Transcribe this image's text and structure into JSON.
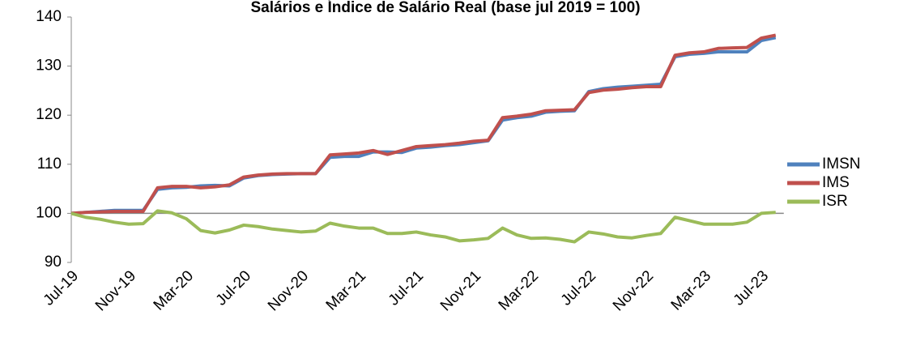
{
  "chart_data": {
    "type": "line",
    "title": "Salários e Índice de Salário Real (base jul 2019 = 100)",
    "categories": [
      "Jul-19",
      null,
      null,
      null,
      "Nov-19",
      null,
      null,
      null,
      "Mar-20",
      null,
      null,
      null,
      "Jul-20",
      null,
      null,
      null,
      "Nov-20",
      null,
      null,
      null,
      "Mar-21",
      null,
      null,
      null,
      "Jul-21",
      null,
      null,
      null,
      "Nov-21",
      null,
      null,
      null,
      "Mar-22",
      null,
      null,
      null,
      "Jul-22",
      null,
      null,
      null,
      "Nov-22",
      null,
      null,
      null,
      "Mar-23",
      null,
      null,
      null,
      "Jul-23",
      null
    ],
    "series": [
      {
        "name": "IMSN",
        "color": "#4f81bd",
        "values": [
          100,
          100.2,
          100.4,
          100.6,
          100.6,
          100.6,
          104.9,
          105.2,
          105.3,
          105.6,
          105.7,
          105.6,
          107.2,
          107.7,
          107.9,
          108.0,
          108.1,
          108.1,
          111.4,
          111.6,
          111.6,
          112.5,
          112.5,
          112.4,
          113.3,
          113.5,
          113.8,
          114.0,
          114.4,
          114.8,
          119.0,
          119.5,
          119.8,
          120.6,
          120.8,
          120.9,
          124.8,
          125.4,
          125.7,
          125.9,
          126.1,
          126.3,
          131.9,
          132.4,
          132.6,
          132.9,
          132.9,
          132.9,
          135.2,
          135.8
        ]
      },
      {
        "name": "IMS",
        "color": "#c0504d",
        "values": [
          100,
          100.2,
          100.3,
          100.4,
          100.4,
          100.4,
          105.2,
          105.5,
          105.5,
          105.2,
          105.4,
          105.8,
          107.4,
          107.8,
          108.0,
          108.1,
          108.1,
          108.1,
          111.9,
          112.1,
          112.3,
          112.8,
          112.0,
          112.8,
          113.6,
          113.8,
          114.0,
          114.3,
          114.7,
          114.9,
          119.5,
          119.8,
          120.2,
          120.9,
          121.0,
          121.1,
          124.6,
          125.1,
          125.3,
          125.6,
          125.8,
          125.8,
          132.2,
          132.7,
          132.9,
          133.6,
          133.7,
          133.8,
          135.7,
          136.3
        ]
      },
      {
        "name": "ISR",
        "color": "#9bbb59",
        "values": [
          100,
          99.2,
          98.8,
          98.2,
          97.8,
          97.9,
          100.5,
          100.1,
          98.9,
          96.5,
          96.0,
          96.6,
          97.6,
          97.3,
          96.8,
          96.5,
          96.2,
          96.4,
          98.0,
          97.4,
          97.0,
          97.0,
          95.9,
          95.9,
          96.2,
          95.6,
          95.2,
          94.4,
          94.6,
          94.9,
          97.0,
          95.6,
          94.9,
          95.0,
          94.7,
          94.2,
          96.2,
          95.8,
          95.2,
          95.0,
          95.5,
          95.9,
          99.2,
          98.5,
          97.8,
          97.8,
          97.8,
          98.2,
          100.0,
          100.2
        ]
      }
    ],
    "ylim": [
      90,
      140
    ],
    "yticks": [
      90,
      100,
      110,
      120,
      130,
      140
    ],
    "x_axis_at": 100,
    "legend": "right"
  }
}
